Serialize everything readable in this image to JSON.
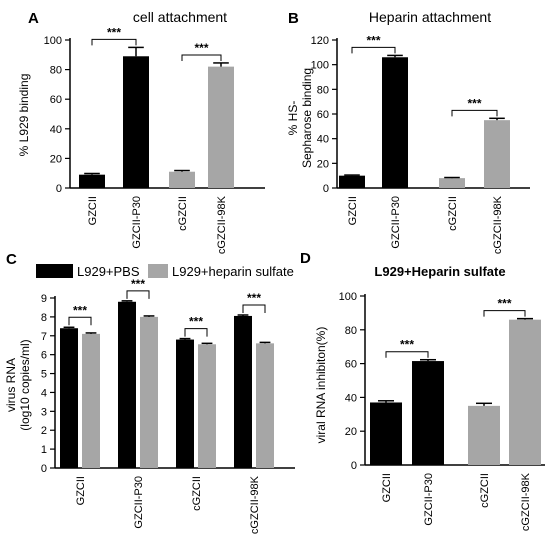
{
  "figure": {
    "panels": [
      "A",
      "B",
      "C",
      "D"
    ]
  },
  "colors": {
    "black_bar": "#000000",
    "grey_bar": "#a6a6a6",
    "axis": "#000000"
  },
  "chart_data": [
    {
      "panel": "A",
      "type": "bar",
      "title": "cell attachment",
      "ylabel": "% L929 binding",
      "categories": [
        "GZCII",
        "GZCII-P30",
        "cGZCII",
        "cGZCII-98K"
      ],
      "values": [
        9,
        89,
        11,
        82
      ],
      "errors": [
        0.8,
        6,
        0.8,
        2.5
      ],
      "bar_colors": [
        "black",
        "black",
        "grey",
        "grey"
      ],
      "ylim": [
        0,
        100
      ],
      "yticks": [
        0,
        20,
        40,
        60,
        80,
        100
      ],
      "significance": [
        {
          "between": [
            0,
            1
          ],
          "label": "***"
        },
        {
          "between": [
            2,
            3
          ],
          "label": "***"
        }
      ]
    },
    {
      "panel": "B",
      "type": "bar",
      "title": "Heparin attachment",
      "ylabel_lines": [
        "% HS-",
        "Sepharose binding"
      ],
      "categories": [
        "GZCII",
        "GZCII-P30",
        "cGZCII",
        "cGZCII-98K"
      ],
      "values": [
        10,
        106,
        8,
        55
      ],
      "errors": [
        0.5,
        1.5,
        0.5,
        1.5
      ],
      "bar_colors": [
        "black",
        "black",
        "grey",
        "grey"
      ],
      "ylim": [
        0,
        120
      ],
      "yticks": [
        0,
        20,
        40,
        60,
        80,
        100,
        120
      ],
      "significance": [
        {
          "between": [
            0,
            1
          ],
          "label": "***"
        },
        {
          "between": [
            2,
            3
          ],
          "label": "***"
        }
      ]
    },
    {
      "panel": "C",
      "type": "bar",
      "ylabel_lines": [
        "virus RNA",
        "(log10 copies/ml)"
      ],
      "categories": [
        "GZCII",
        "GZCII-P30",
        "cGZCII",
        "cGZCII-98K"
      ],
      "series": [
        {
          "name": "L929+PBS",
          "color": "black",
          "values": [
            7.4,
            8.8,
            6.8,
            8.05
          ],
          "errors": [
            0.05,
            0.05,
            0.05,
            0.05
          ]
        },
        {
          "name": "L929+heparin sulfate",
          "color": "grey",
          "values": [
            7.1,
            8.0,
            6.55,
            6.6
          ],
          "errors": [
            0.05,
            0.05,
            0.05,
            0.05
          ]
        }
      ],
      "ylim": [
        0,
        9
      ],
      "yticks": [
        0,
        1,
        2,
        3,
        4,
        5,
        6,
        7,
        8,
        9
      ],
      "legend": "top",
      "significance": [
        {
          "group": 0,
          "label": "***"
        },
        {
          "group": 1,
          "label": "***"
        },
        {
          "group": 2,
          "label": "***"
        },
        {
          "group": 3,
          "label": "***"
        }
      ]
    },
    {
      "panel": "D",
      "type": "bar",
      "title": "L929+Heparin sulfate",
      "ylabel": "viral RNA inhibiton(%)",
      "categories": [
        "GZCII",
        "GZCII-P30",
        "cGZCII",
        "cGZCII-98K"
      ],
      "values": [
        37,
        61.5,
        35,
        86
      ],
      "errors": [
        1,
        0.8,
        1.5,
        0.6
      ],
      "bar_colors": [
        "black",
        "black",
        "grey",
        "grey"
      ],
      "ylim": [
        0,
        100
      ],
      "yticks": [
        0,
        20,
        40,
        60,
        80,
        100
      ],
      "significance": [
        {
          "between": [
            0,
            1
          ],
          "label": "***"
        },
        {
          "between": [
            2,
            3
          ],
          "label": "***"
        }
      ]
    }
  ]
}
